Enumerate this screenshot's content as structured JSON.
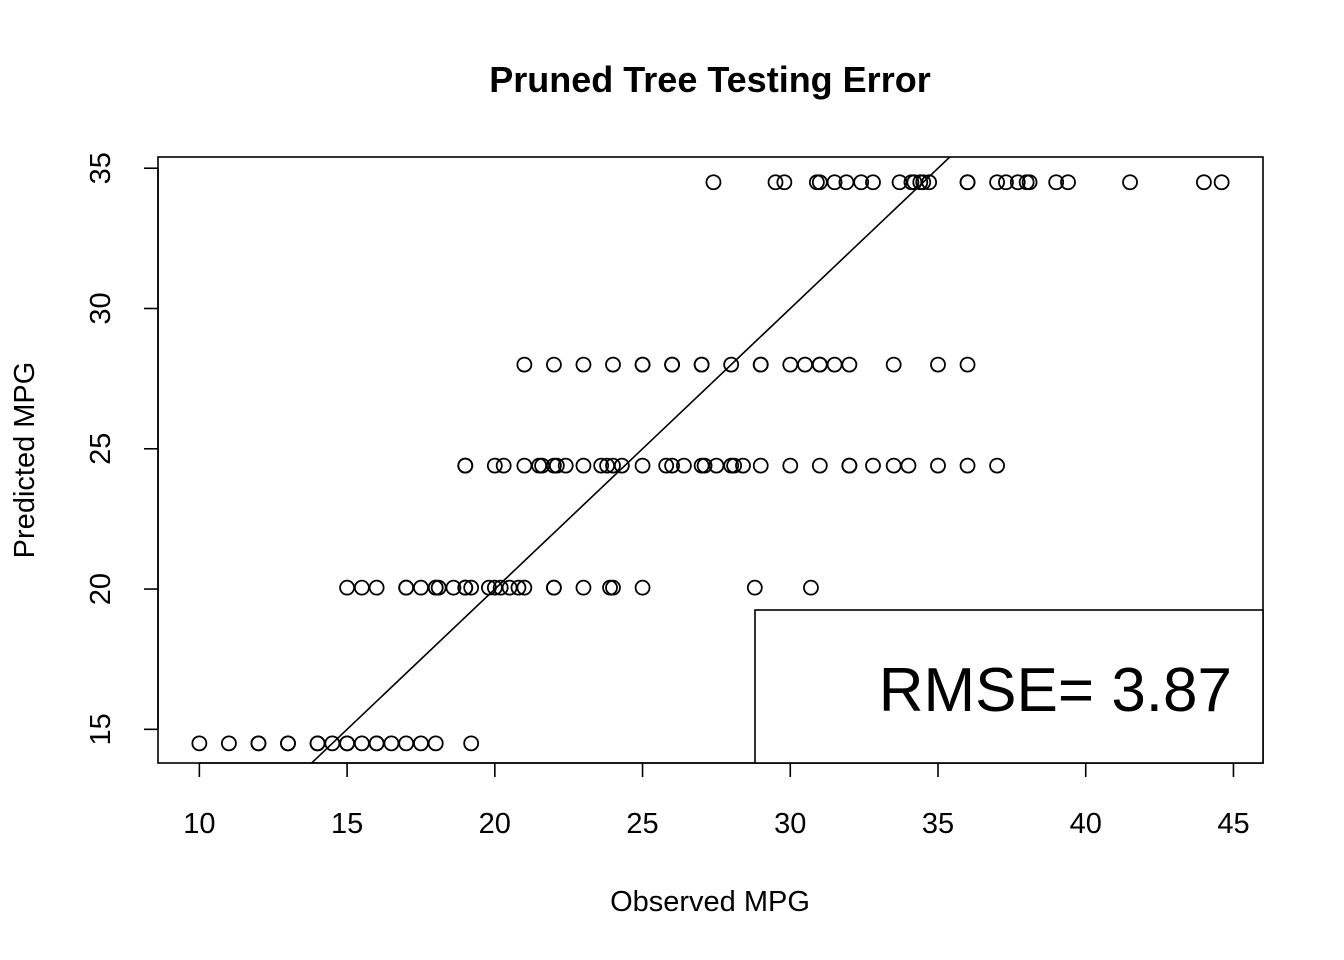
{
  "chart_data": {
    "type": "scatter",
    "title": "Pruned Tree Testing Error",
    "xlabel": "Observed MPG",
    "ylabel": "Predicted MPG",
    "xlim": [
      8.6,
      46
    ],
    "ylim": [
      13.8,
      35.4
    ],
    "xticks": [
      10,
      15,
      20,
      25,
      30,
      35,
      40,
      45
    ],
    "yticks": [
      15,
      20,
      25,
      30,
      35
    ],
    "grid": false,
    "reference_line": {
      "intercept": 0,
      "slope": 1
    },
    "legend": {
      "text": "RMSE= 3.87",
      "position": "bottom-right"
    },
    "series": [
      {
        "points": [
          [
            10,
            14.5
          ],
          [
            11,
            14.5
          ],
          [
            12,
            14.5
          ],
          [
            12,
            14.5
          ],
          [
            13,
            14.5
          ],
          [
            13,
            14.5
          ],
          [
            14,
            14.5
          ],
          [
            14,
            14.5
          ],
          [
            14.5,
            14.5
          ],
          [
            15,
            14.5
          ],
          [
            15,
            14.5
          ],
          [
            15.5,
            14.5
          ],
          [
            16,
            14.5
          ],
          [
            16,
            14.5
          ],
          [
            16.5,
            14.5
          ],
          [
            17,
            14.5
          ],
          [
            17.5,
            14.5
          ],
          [
            18,
            14.5
          ],
          [
            19.2,
            14.5
          ],
          [
            15,
            20.05
          ],
          [
            15.5,
            20.05
          ],
          [
            16,
            20.05
          ],
          [
            17,
            20.05
          ],
          [
            17,
            20.05
          ],
          [
            17.5,
            20.05
          ],
          [
            18,
            20.05
          ],
          [
            18,
            20.05
          ],
          [
            18.1,
            20.05
          ],
          [
            18.6,
            20.05
          ],
          [
            19,
            20.05
          ],
          [
            19,
            20.05
          ],
          [
            19.2,
            20.05
          ],
          [
            19.8,
            20.05
          ],
          [
            20,
            20.05
          ],
          [
            20.2,
            20.05
          ],
          [
            20.5,
            20.05
          ],
          [
            20.8,
            20.05
          ],
          [
            21,
            20.05
          ],
          [
            22,
            20.05
          ],
          [
            22,
            20.05
          ],
          [
            23,
            20.05
          ],
          [
            23.9,
            20.05
          ],
          [
            24,
            20.05
          ],
          [
            25,
            20.05
          ],
          [
            28.8,
            20.05
          ],
          [
            30.7,
            20.05
          ],
          [
            19,
            24.4
          ],
          [
            19,
            24.4
          ],
          [
            20,
            24.4
          ],
          [
            20.3,
            24.4
          ],
          [
            21,
            24.4
          ],
          [
            21.5,
            24.4
          ],
          [
            21.6,
            24.4
          ],
          [
            22,
            24.4
          ],
          [
            22.1,
            24.4
          ],
          [
            22.4,
            24.4
          ],
          [
            23,
            24.4
          ],
          [
            23.6,
            24.4
          ],
          [
            23.8,
            24.4
          ],
          [
            24,
            24.4
          ],
          [
            24.3,
            24.4
          ],
          [
            25,
            24.4
          ],
          [
            25.8,
            24.4
          ],
          [
            26,
            24.4
          ],
          [
            26.4,
            24.4
          ],
          [
            27,
            24.4
          ],
          [
            27.1,
            24.4
          ],
          [
            27.5,
            24.4
          ],
          [
            28,
            24.4
          ],
          [
            28.1,
            24.4
          ],
          [
            28.4,
            24.4
          ],
          [
            29,
            24.4
          ],
          [
            30,
            24.4
          ],
          [
            31,
            24.4
          ],
          [
            32,
            24.4
          ],
          [
            32,
            24.4
          ],
          [
            32.8,
            24.4
          ],
          [
            33.5,
            24.4
          ],
          [
            34,
            24.4
          ],
          [
            35,
            24.4
          ],
          [
            36,
            24.4
          ],
          [
            37,
            24.4
          ],
          [
            21,
            28
          ],
          [
            22,
            28
          ],
          [
            23,
            28
          ],
          [
            24,
            28
          ],
          [
            25,
            28
          ],
          [
            25,
            28
          ],
          [
            26,
            28
          ],
          [
            26,
            28
          ],
          [
            27,
            28
          ],
          [
            27,
            28
          ],
          [
            28,
            28
          ],
          [
            29,
            28
          ],
          [
            29,
            28
          ],
          [
            30,
            28
          ],
          [
            30.5,
            28
          ],
          [
            31,
            28
          ],
          [
            31,
            28
          ],
          [
            31.5,
            28
          ],
          [
            32,
            28
          ],
          [
            33.5,
            28
          ],
          [
            35,
            28
          ],
          [
            36,
            28
          ],
          [
            27.4,
            34.5
          ],
          [
            29.5,
            34.5
          ],
          [
            29.8,
            34.5
          ],
          [
            30.9,
            34.5
          ],
          [
            31,
            34.5
          ],
          [
            31.5,
            34.5
          ],
          [
            31.9,
            34.5
          ],
          [
            32.4,
            34.5
          ],
          [
            32.8,
            34.5
          ],
          [
            33.7,
            34.5
          ],
          [
            34.1,
            34.5
          ],
          [
            34.2,
            34.5
          ],
          [
            34.4,
            34.5
          ],
          [
            34.5,
            34.5
          ],
          [
            34.7,
            34.5
          ],
          [
            36,
            34.5
          ],
          [
            36,
            34.5
          ],
          [
            37,
            34.5
          ],
          [
            37.3,
            34.5
          ],
          [
            37.7,
            34.5
          ],
          [
            38,
            34.5
          ],
          [
            38.1,
            34.5
          ],
          [
            39,
            34.5
          ],
          [
            39.4,
            34.5
          ],
          [
            41.5,
            34.5
          ],
          [
            44,
            34.5
          ],
          [
            44.6,
            34.5
          ]
        ]
      }
    ]
  }
}
